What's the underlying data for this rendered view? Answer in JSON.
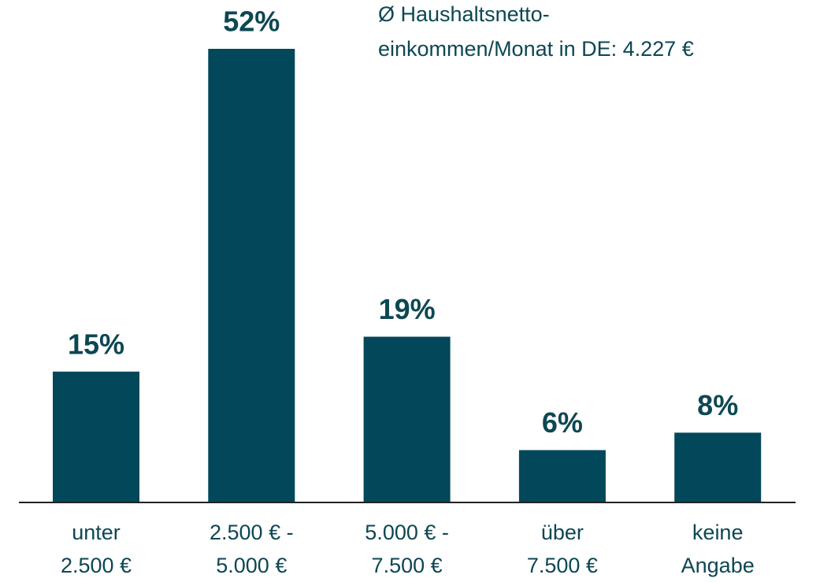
{
  "chart_data": {
    "type": "bar",
    "annotation": [
      "Ø Haushaltsnetto-",
      "einkommen/Monat in DE: 4.227 €"
    ],
    "categories": [
      [
        "unter",
        "2.500 €"
      ],
      [
        "2.500 € -",
        "5.000 €"
      ],
      [
        "5.000 € -",
        "7.500 €"
      ],
      [
        "über",
        "7.500 €"
      ],
      [
        "keine",
        "Angabe"
      ]
    ],
    "values": [
      15,
      52,
      19,
      6,
      8
    ],
    "value_labels": [
      "15%",
      "52%",
      "19%",
      "6%",
      "8%"
    ],
    "color": "#02475a"
  }
}
